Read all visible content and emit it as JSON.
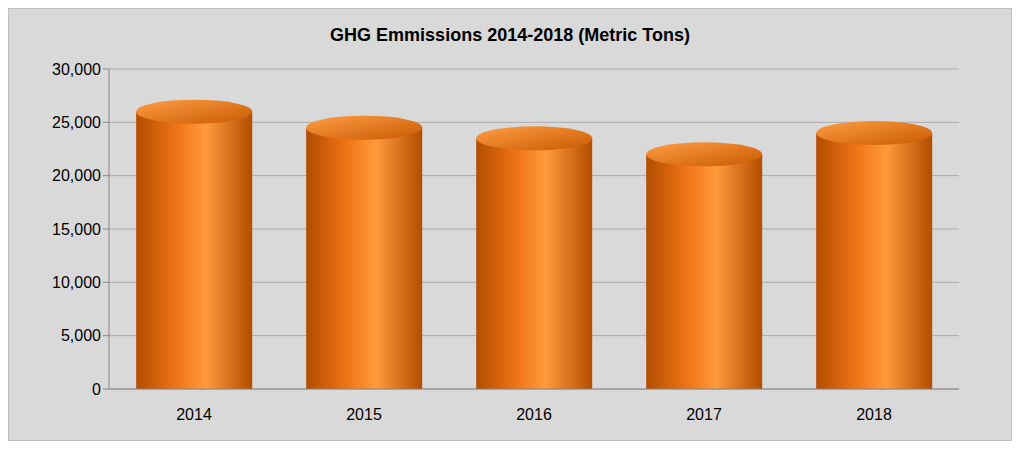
{
  "chart_data": {
    "type": "bar",
    "title": "GHG Emmissions 2014-2018 (Metric Tons)",
    "categories": [
      "2014",
      "2015",
      "2016",
      "2017",
      "2018"
    ],
    "values": [
      26000,
      24500,
      23500,
      22000,
      24000
    ],
    "color": "#f07417",
    "ylim": [
      0,
      30000
    ],
    "yticks": [
      0,
      {
        "value": 5000,
        "label": "5,000"
      },
      {
        "value": 10000,
        "label": "10,000"
      },
      {
        "value": 15000,
        "label": "15,000"
      },
      {
        "value": 20000,
        "label": "20,000"
      },
      {
        "value": 25000,
        "label": "25,000"
      },
      {
        "value": 30000,
        "label": "30,000"
      }
    ],
    "grid": true
  }
}
